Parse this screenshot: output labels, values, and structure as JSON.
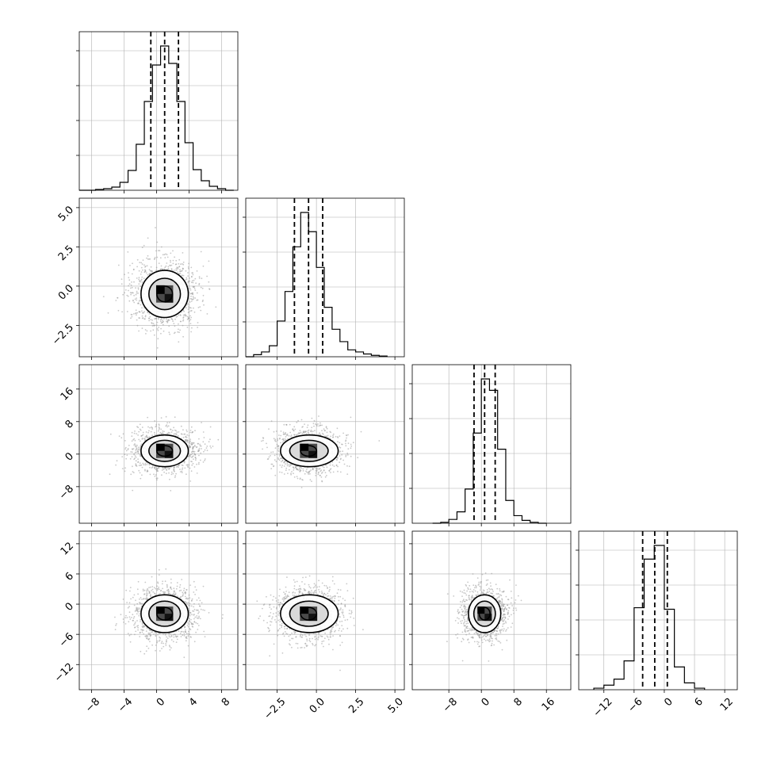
{
  "chart_data": {
    "type": "corner",
    "colors": {
      "scatter": "#9a9a9a",
      "hist": "#000000",
      "grid": "#b0b0b0",
      "frame": "#000000",
      "density": "#000000"
    },
    "grid": true,
    "params": [
      {
        "range": [
          -9.5,
          10
        ],
        "ticks": [
          -8,
          -4,
          0,
          4,
          8
        ],
        "tick_labels": [
          "−8",
          "−4",
          "0",
          "4",
          "8"
        ],
        "center": 1.0,
        "sigma": 1.9
      },
      {
        "range": [
          -4.5,
          5.6
        ],
        "ticks": [
          -2.5,
          0,
          2.5,
          5
        ],
        "tick_labels": [
          "−2.5",
          "0.0",
          "2.5",
          "5.0"
        ],
        "center": -0.5,
        "sigma": 1.0
      },
      {
        "range": [
          -17,
          22
        ],
        "ticks": [
          -8,
          0,
          8,
          16
        ],
        "tick_labels": [
          "−8",
          "0",
          "8",
          "16"
        ],
        "center": 0.8,
        "sigma": 2.6
      },
      {
        "range": [
          -17,
          14.5
        ],
        "ticks": [
          -12,
          -6,
          0,
          6,
          12
        ],
        "tick_labels": [
          "−12",
          "−6",
          "0",
          "6",
          "12"
        ],
        "center": -1.9,
        "sigma": 2.5
      }
    ],
    "y_tick_labels": [
      {
        "row": 1,
        "labels": [
          "5.0",
          "2.5",
          "0.0",
          "−2.5"
        ],
        "values": [
          5,
          2.5,
          0,
          -2.5
        ]
      },
      {
        "row": 2,
        "labels": [
          "16",
          "8",
          "0",
          "−8"
        ],
        "values": [
          16,
          8,
          0,
          -8
        ]
      },
      {
        "row": 3,
        "labels": [
          "12",
          "6",
          "0",
          "−6",
          "−12"
        ],
        "values": [
          12,
          6,
          0,
          -6,
          -12
        ]
      }
    ],
    "histograms": [
      {
        "param": 0,
        "quantiles": [
          -0.7,
          1.0,
          2.7
        ],
        "bins": [
          [
            -9.5,
            -8.5,
            0
          ],
          [
            -8.5,
            -7.5,
            0
          ],
          [
            -7.5,
            -6.5,
            1
          ],
          [
            -6.5,
            -5.5,
            2
          ],
          [
            -5.5,
            -4.5,
            4
          ],
          [
            -4.5,
            -3.5,
            10
          ],
          [
            -3.5,
            -2.5,
            25
          ],
          [
            -2.5,
            -1.5,
            58
          ],
          [
            -1.5,
            -0.5,
            112
          ],
          [
            -0.5,
            0.5,
            158
          ],
          [
            0.5,
            1.5,
            182
          ],
          [
            1.5,
            2.5,
            160
          ],
          [
            2.5,
            3.5,
            112
          ],
          [
            3.5,
            4.5,
            60
          ],
          [
            4.5,
            5.5,
            26
          ],
          [
            5.5,
            6.5,
            12
          ],
          [
            6.5,
            7.5,
            5
          ],
          [
            7.5,
            8.5,
            2
          ],
          [
            8.5,
            9.5,
            0
          ]
        ]
      },
      {
        "param": 1,
        "quantiles": [
          -1.4,
          -0.5,
          0.4
        ],
        "bins": [
          [
            -4.5,
            -4.0,
            0
          ],
          [
            -4.0,
            -3.5,
            3
          ],
          [
            -3.5,
            -3.0,
            7
          ],
          [
            -3.0,
            -2.5,
            16
          ],
          [
            -2.5,
            -2.0,
            52
          ],
          [
            -2.0,
            -1.5,
            95
          ],
          [
            -1.5,
            -1.0,
            160
          ],
          [
            -1.0,
            -0.5,
            210
          ],
          [
            -0.5,
            0.0,
            182
          ],
          [
            0.0,
            0.5,
            130
          ],
          [
            0.5,
            1.0,
            72
          ],
          [
            1.0,
            1.5,
            40
          ],
          [
            1.5,
            2.0,
            22
          ],
          [
            2.0,
            2.5,
            10
          ],
          [
            2.5,
            3.0,
            7
          ],
          [
            3.0,
            3.5,
            4
          ],
          [
            3.5,
            4.0,
            2
          ],
          [
            4.0,
            4.5,
            1
          ]
        ]
      },
      {
        "param": 2,
        "quantiles": [
          -1.8,
          0.8,
          3.4
        ],
        "bins": [
          [
            -12,
            -10,
            0
          ],
          [
            -10,
            -8,
            1
          ],
          [
            -8,
            -6,
            4
          ],
          [
            -6,
            -4,
            12
          ],
          [
            -4,
            -2,
            36
          ],
          [
            -2,
            0,
            95
          ],
          [
            0,
            2,
            152
          ],
          [
            2,
            4,
            140
          ],
          [
            4,
            6,
            78
          ],
          [
            6,
            8,
            24
          ],
          [
            8,
            10,
            8
          ],
          [
            10,
            12,
            3
          ],
          [
            12,
            14,
            1
          ],
          [
            14,
            16,
            0
          ]
        ]
      },
      {
        "param": 3,
        "quantiles": [
          -4.3,
          -1.9,
          0.6
        ],
        "bins": [
          [
            -14,
            -12,
            2
          ],
          [
            -12,
            -10,
            6
          ],
          [
            -10,
            -8,
            14
          ],
          [
            -8,
            -6,
            38
          ],
          [
            -6,
            -4,
            108
          ],
          [
            -4,
            -2,
            172
          ],
          [
            -2,
            0,
            190
          ],
          [
            0,
            2,
            106
          ],
          [
            2,
            4,
            30
          ],
          [
            4,
            6,
            9
          ],
          [
            6,
            8,
            2
          ]
        ]
      }
    ],
    "contour_levels": [
      0.5,
      1.0,
      1.5
    ]
  }
}
